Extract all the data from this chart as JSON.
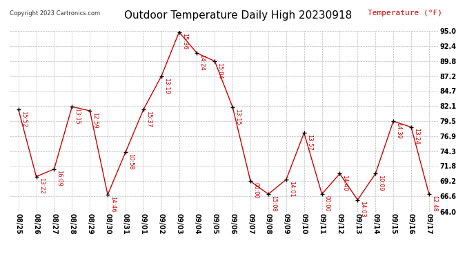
{
  "title": "Outdoor Temperature Daily High 20230918",
  "copyright": "Copyright 2023 Cartronics.com",
  "ylabel": "Temperature (°F)",
  "background_color": "#ffffff",
  "line_color": "#cc0000",
  "marker_color": "#000000",
  "grid_color": "#bbbbbb",
  "dates": [
    "08/25",
    "08/26",
    "08/27",
    "08/28",
    "08/29",
    "08/30",
    "08/31",
    "09/01",
    "09/02",
    "09/03",
    "09/04",
    "09/05",
    "09/06",
    "09/07",
    "09/08",
    "09/09",
    "09/10",
    "09/11",
    "09/12",
    "09/13",
    "09/14",
    "09/15",
    "09/16",
    "09/17"
  ],
  "temps": [
    81.5,
    70.0,
    71.3,
    82.0,
    81.3,
    66.9,
    74.2,
    81.5,
    87.2,
    94.8,
    91.2,
    89.8,
    81.9,
    69.2,
    67.0,
    69.5,
    77.5,
    67.0,
    70.5,
    66.0,
    70.5,
    79.5,
    78.5,
    67.0
  ],
  "time_labels": [
    "15:52",
    "13:22",
    "16:09",
    "13:15",
    "12:59",
    "14:46",
    "10:58",
    "15:37",
    "13:19",
    "15:36",
    "14:24",
    "15:04",
    "13:15",
    "00:00",
    "15:08",
    "14:01",
    "13:57",
    "00:00",
    "14:40",
    "14:03",
    "10:09",
    "14:39",
    "13:24",
    "12:48"
  ],
  "ylim": [
    64.0,
    95.0
  ],
  "yticks": [
    64.0,
    66.6,
    69.2,
    71.8,
    74.3,
    76.9,
    79.5,
    82.1,
    84.7,
    87.2,
    89.8,
    92.4,
    95.0
  ],
  "title_fontsize": 11,
  "label_fontsize": 8,
  "tick_fontsize": 7,
  "annot_fontsize": 6,
  "copyright_fontsize": 6
}
